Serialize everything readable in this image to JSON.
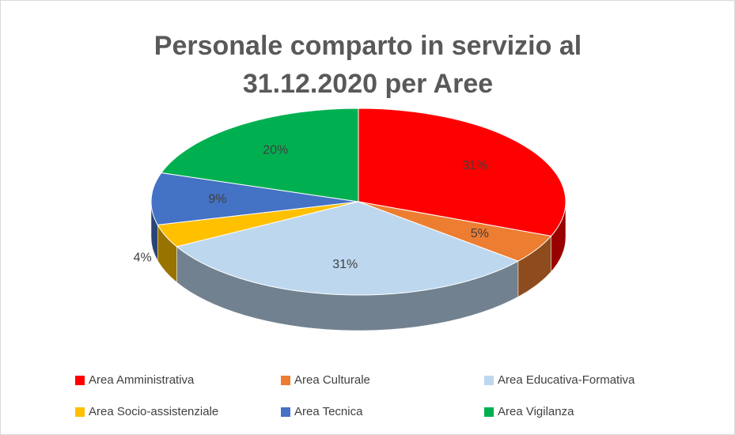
{
  "chart_data": {
    "type": "pie",
    "title": [
      "Personale comparto in servizio al",
      "31.12.2020 per Aree"
    ],
    "categories": [
      "Area Amministrativa",
      "Area Culturale",
      "Area Educativa-Formativa",
      "Area Socio-assistenziale",
      "Area Tecnica",
      "Area Vigilanza"
    ],
    "values": [
      31,
      5,
      31,
      4,
      9,
      20
    ],
    "value_labels": [
      "31%",
      "5%",
      "31%",
      "4%",
      "9%",
      "20%"
    ],
    "colors": [
      "#ff0000",
      "#ed7d31",
      "#bdd7ee",
      "#ffc000",
      "#4472c4",
      "#00b050"
    ],
    "legend": "bottom"
  }
}
